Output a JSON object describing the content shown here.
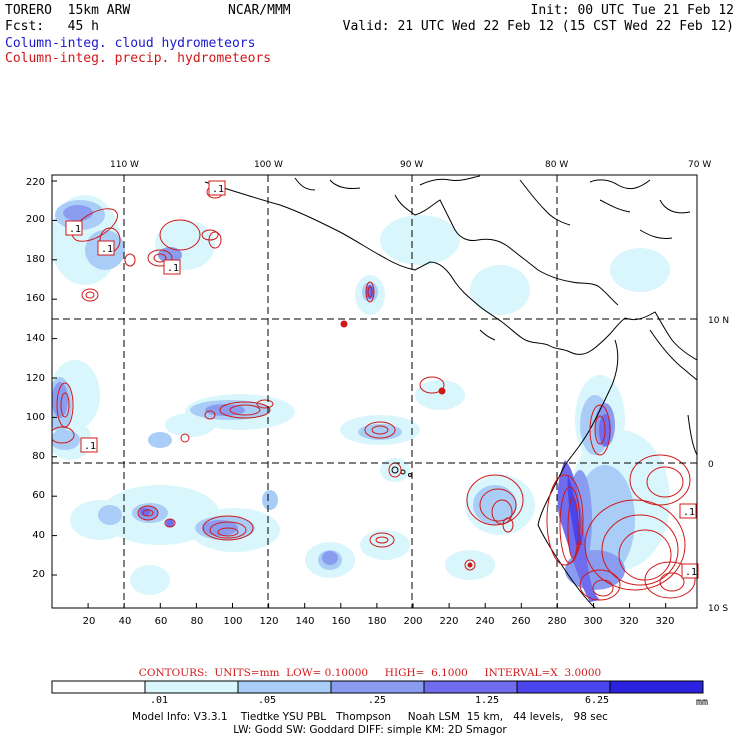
{
  "header": {
    "model": "TORERO  15km ARW",
    "org": "NCAR/MMM",
    "init": "Init: 00 UTC Tue 21 Feb 12",
    "fcst": "Fcst:   45 h",
    "valid": "Valid: 21 UTC Wed 22 Feb 12 (15 CST Wed 22 Feb 12)",
    "field1": "Column-integ. cloud hydrometeors",
    "field2": "Column-integ. precip. hydrometeors"
  },
  "colors": {
    "field1": "#1a1acc",
    "field2": "#d01818",
    "coast": "#000000",
    "grid": "#000000"
  },
  "map": {
    "lon_labels": [
      "110 W",
      "100 W",
      "90 W",
      "80 W",
      "70 W"
    ],
    "lat_labels": [
      "10 N",
      "0",
      "10 S"
    ],
    "x_ticks": [
      "20",
      "40",
      "60",
      "80",
      "100",
      "120",
      "140",
      "160",
      "180",
      "200",
      "220",
      "240",
      "260",
      "280",
      "300",
      "320"
    ],
    "y_ticks": [
      "220",
      "200",
      "180",
      "160",
      "140",
      "120",
      "100",
      "80",
      "60",
      "40",
      "20"
    ],
    "contour_label": ".1"
  },
  "colorbar": {
    "levels": [
      ".01",
      ".05",
      ".25",
      "1.25",
      "6.25"
    ],
    "units": "mm",
    "colors": [
      "#ffffff",
      "#d8f6fb",
      "#a9cdf6",
      "#8a9cf0",
      "#6f6ded",
      "#4a44ec",
      "#2b22e0"
    ]
  },
  "contours_line": "CONTOURS:  UNITS=mm  LOW= 0.10000     HIGH=  6.1000     INTERVAL=X  3.0000",
  "footer": {
    "line1": "Model Info: V3.3.1    Tiedtke YSU PBL   Thompson     Noah LSM  15 km,   44 levels,   98 sec",
    "line2": "LW: Godd SW: Goddard DIFF: simple KM: 2D Smagor"
  }
}
